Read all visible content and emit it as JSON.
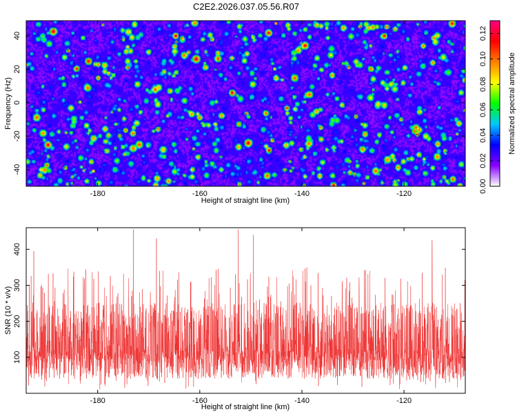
{
  "page_title": "C2E2.2026.037.05.56.R07",
  "chart_data": [
    {
      "type": "heatmap",
      "name": "spectrogram",
      "title": "C2E2.2026.037.05.56.R07",
      "xlabel": "Height of straight line (km)",
      "ylabel": "Frequency (Hz)",
      "xlim": [
        -194,
        -108
      ],
      "ylim": [
        -50,
        49
      ],
      "xticks": [
        -180,
        -160,
        -140,
        -120
      ],
      "xtick_labels": [
        "-180",
        "-160",
        "-140",
        "-120"
      ],
      "yticks": [
        -40,
        -20,
        0,
        20,
        40
      ],
      "ytick_labels": [
        "-40",
        "-20",
        "0",
        "20",
        "40"
      ],
      "colorbar": {
        "label": "Normalized spectral amplitude",
        "range": [
          0,
          0.13
        ],
        "ticks": [
          0.0,
          0.02,
          0.04,
          0.06,
          0.08,
          0.1,
          0.12
        ],
        "tick_labels": [
          "0.00",
          "0.02",
          "0.04",
          "0.06",
          "0.08",
          "0.10",
          "0.12"
        ],
        "colormap": [
          "#ffffff",
          "#8a00ff",
          "#0000ff",
          "#00c8ff",
          "#00ff00",
          "#ffff00",
          "#ff8000",
          "#ff0000",
          "#ff0080"
        ]
      },
      "grid": false
    },
    {
      "type": "line",
      "name": "snr-trace",
      "xlabel": "Height of straight line (km)",
      "ylabel": "SNR (10 * v/v)",
      "xlim": [
        -194,
        -108
      ],
      "ylim": [
        0,
        460
      ],
      "xticks": [
        -180,
        -160,
        -140,
        -120
      ],
      "xtick_labels": [
        "-180",
        "-160",
        "-140",
        "-120"
      ],
      "yticks": [
        100,
        200,
        300,
        400
      ],
      "ytick_labels": [
        "100",
        "200",
        "300",
        "400"
      ],
      "series": [
        {
          "name": "SNR",
          "color": "#ee2a2a",
          "baseline_mean": 140,
          "typical_range": [
            40,
            240
          ],
          "peak_max": 455
        }
      ],
      "notable_peaks": [
        {
          "x": -173,
          "y": 455
        },
        {
          "x": -152.5,
          "y": 455
        },
        {
          "x": -149.5,
          "y": 440
        },
        {
          "x": -168.5,
          "y": 430
        },
        {
          "x": -192.5,
          "y": 395
        },
        {
          "x": -114.5,
          "y": 425
        }
      ],
      "grid": false
    }
  ]
}
